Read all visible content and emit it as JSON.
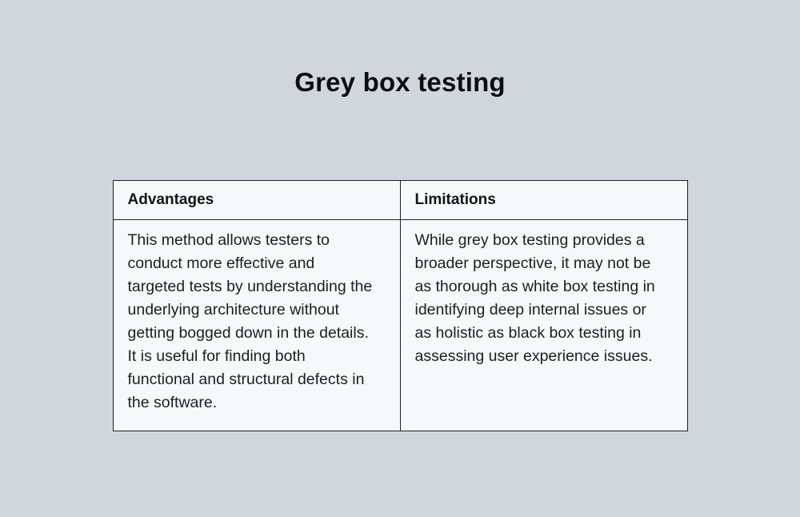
{
  "page": {
    "title": "Grey box testing"
  },
  "table": {
    "columns": [
      {
        "header": "Advantages",
        "body": "This method allows testers to conduct more effective and targeted tests by understanding the underlying architecture without getting bogged down in the details. It is useful for finding both functional and structural defects in the software."
      },
      {
        "header": "Limitations",
        "body": "While grey box testing provides a broader perspective, it may not be as thorough as white box testing in identifying deep internal issues or as holistic as black box testing in assessing user experience issues."
      }
    ]
  },
  "colors": {
    "page_bg": "#d1d5dc",
    "cell_bg": "#f7f8fa",
    "border": "#1f2227",
    "title_text": "#0c0e11",
    "body_text": "#1b1e23"
  }
}
